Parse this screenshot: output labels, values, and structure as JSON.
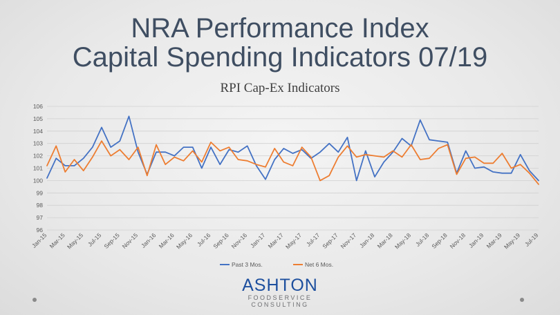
{
  "slide": {
    "title_line1": "NRA Performance Index",
    "title_line2": "Capital Spending Indicators 07/19",
    "logo_main": "ASHTON",
    "logo_sub1": "FOODSERVICE",
    "logo_sub2": "CONSULTING"
  },
  "chart_data": {
    "type": "line",
    "title": "RPI Cap-Ex Indicators",
    "xlabel": "",
    "ylabel": "",
    "ylim": [
      96,
      106
    ],
    "yticks": [
      96,
      97,
      98,
      99,
      100,
      101,
      102,
      103,
      104,
      105,
      106
    ],
    "grid": true,
    "legend_position": "bottom",
    "x": [
      "Jan-15",
      "Feb-15",
      "Mar-15",
      "Apr-15",
      "May-15",
      "Jun-15",
      "Jul-15",
      "Aug-15",
      "Sep-15",
      "Oct-15",
      "Nov-15",
      "Dec-15",
      "Jan-16",
      "Feb-16",
      "Mar-16",
      "Apr-16",
      "May-16",
      "Jun-16",
      "Jul-16",
      "Aug-16",
      "Sep-16",
      "Oct-16",
      "Nov-16",
      "Dec-16",
      "Jan-17",
      "Feb-17",
      "Mar-17",
      "Apr-17",
      "May-17",
      "Jun-17",
      "Jul-17",
      "Aug-17",
      "Sep-17",
      "Oct-17",
      "Nov-17",
      "Dec-17",
      "Jan-18",
      "Feb-18",
      "Mar-18",
      "Apr-18",
      "May-18",
      "Jun-18",
      "Jul-18",
      "Aug-18",
      "Sep-18",
      "Oct-18",
      "Nov-18",
      "Dec-18",
      "Jan-19",
      "Feb-19",
      "Mar-19",
      "Apr-19",
      "May-19",
      "Jun-19",
      "Jul-19"
    ],
    "x_tick_labels": [
      "Jan-15",
      "Mar-15",
      "May-15",
      "Jul-15",
      "Sep-15",
      "Nov-15",
      "Jan-16",
      "Mar-16",
      "May-16",
      "Jul-16",
      "Sep-16",
      "Nov-16",
      "Jan-17",
      "Mar-17",
      "May-17",
      "Jul-17",
      "Sep-17",
      "Nov-17",
      "Jan-18",
      "Mar-18",
      "May-18",
      "Jul-18",
      "Sep-18",
      "Nov-18",
      "Jan-19",
      "Mar-19",
      "May-19",
      "Jul-19"
    ],
    "series": [
      {
        "name": "Past 3 Mos.",
        "color": "#4472c4",
        "values": [
          100.2,
          101.8,
          101.2,
          101.2,
          101.8,
          102.7,
          104.3,
          102.7,
          103.2,
          105.2,
          102.3,
          100.5,
          102.3,
          102.3,
          102.0,
          102.7,
          102.7,
          101.0,
          102.7,
          101.3,
          102.5,
          102.3,
          102.8,
          101.2,
          100.1,
          101.7,
          102.6,
          102.2,
          102.5,
          101.8,
          102.3,
          103.0,
          102.3,
          103.5,
          100.0,
          102.4,
          100.3,
          101.5,
          102.3,
          103.4,
          102.8,
          104.9,
          103.3,
          103.2,
          103.1,
          100.6,
          102.4,
          101.0,
          101.1,
          100.7,
          100.6,
          100.6,
          102.1,
          100.8,
          100.0
        ]
      },
      {
        "name": "Net 6 Mos.",
        "color": "#ed7d31",
        "values": [
          101.2,
          102.8,
          100.7,
          101.7,
          100.8,
          101.9,
          103.2,
          102.0,
          102.5,
          101.7,
          102.7,
          100.4,
          102.9,
          101.3,
          101.9,
          101.6,
          102.4,
          101.5,
          103.1,
          102.4,
          102.7,
          101.7,
          101.6,
          101.3,
          101.1,
          102.6,
          101.5,
          101.2,
          102.7,
          101.9,
          100.0,
          100.4,
          101.9,
          102.8,
          101.9,
          102.1,
          102.0,
          101.9,
          102.4,
          101.9,
          102.9,
          101.7,
          101.8,
          102.6,
          102.9,
          100.5,
          101.8,
          101.9,
          101.4,
          101.4,
          102.2,
          101.0,
          101.3,
          100.6,
          99.7
        ]
      }
    ]
  }
}
